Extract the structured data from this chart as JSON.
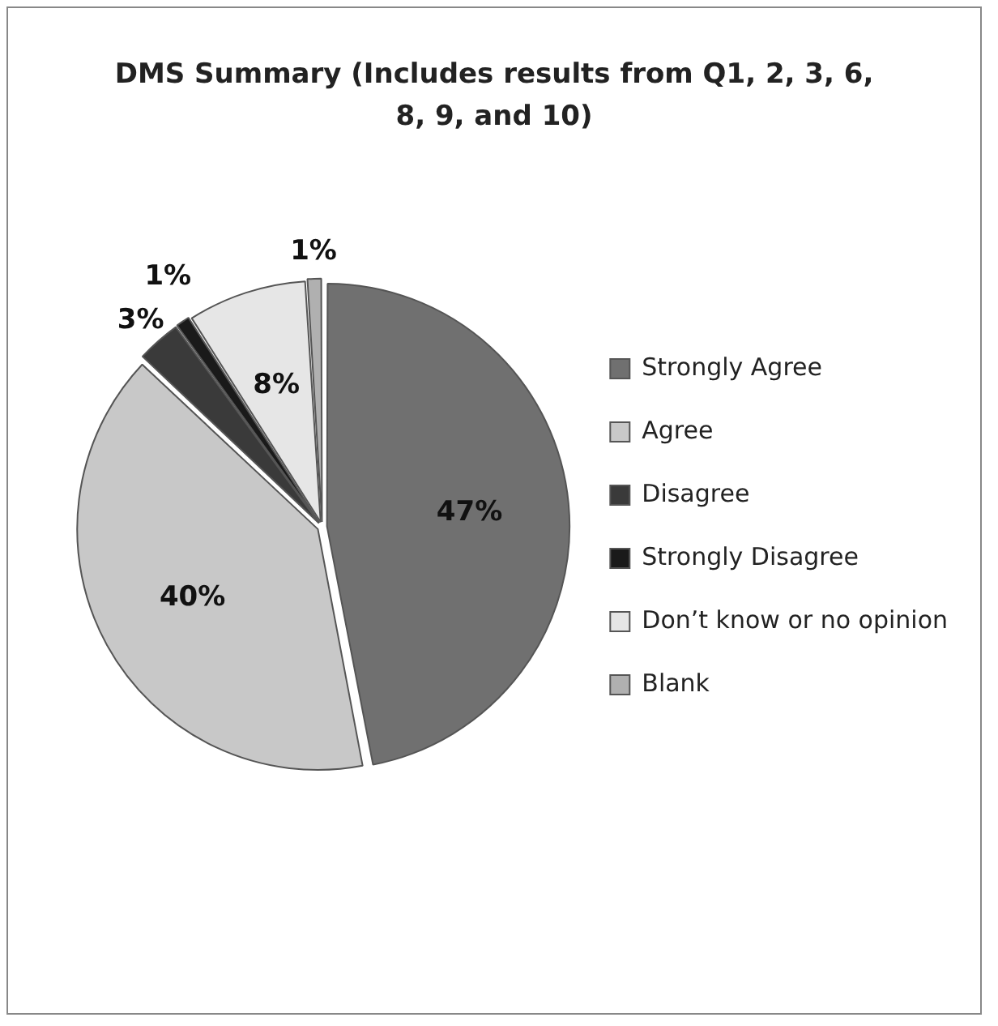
{
  "chart_data": {
    "type": "pie",
    "title": "DMS Summary (Includes results from Q1, 2, 3, 6, 8, 9, and 10)",
    "categories": [
      "Strongly Agree",
      "Agree",
      "Disagree",
      "Strongly Disagree",
      "Don’t know or no opinion",
      "Blank"
    ],
    "values": [
      47,
      40,
      3,
      1,
      8,
      1
    ],
    "colors": [
      "#707070",
      "#c8c8c8",
      "#3a3a3a",
      "#1a1a1a",
      "#e6e6e6",
      "#b0b0b0"
    ],
    "value_labels": [
      "47%",
      "40%",
      "3%",
      "1%",
      "8%",
      "1%"
    ],
    "legend": "right"
  }
}
